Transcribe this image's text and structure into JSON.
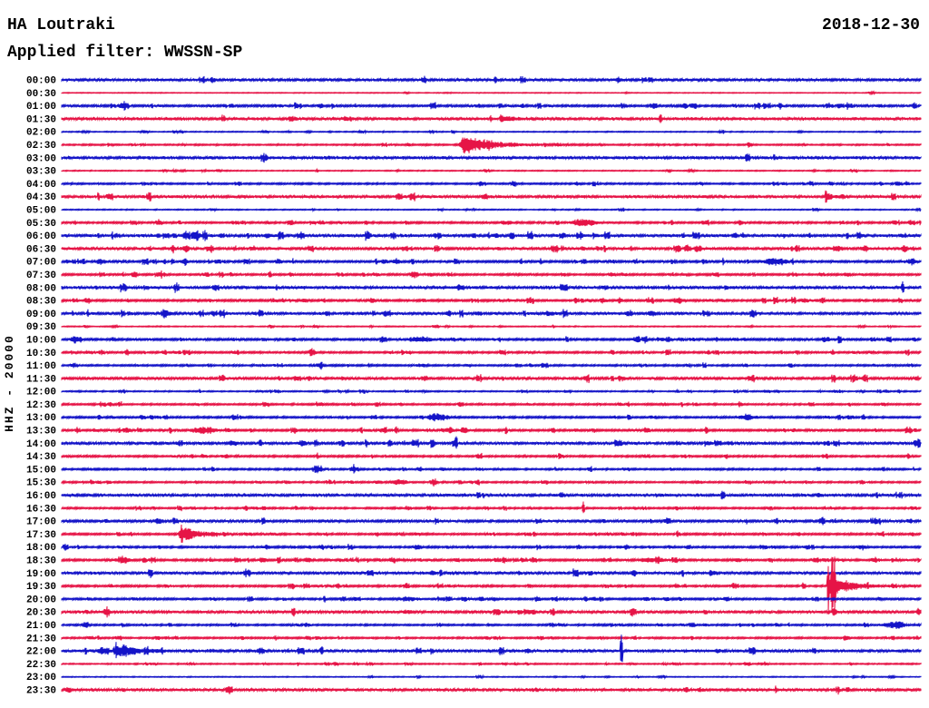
{
  "header": {
    "station": "HA Loutraki",
    "date": "2018-12-30",
    "filter_label": "Applied filter: WWSSN-SP"
  },
  "y_axis_label": "HHZ - 20000",
  "colors": {
    "trace_blue": "#1414c8",
    "trace_red": "#e61446",
    "text": "#000000",
    "background": "#ffffff"
  },
  "chart_data": {
    "type": "line",
    "description": "24-hour seismogram helicorder, 48 alternating blue/red traces of 30 minutes each",
    "title": "HA Loutraki",
    "date": "2018-12-30",
    "filter": "WWSSN-SP",
    "channel_scale_label": "HHZ - 20000",
    "minutes_per_row": 30,
    "row_count": 48,
    "event_key": "ev entries = [shape, x_px_on_plot, half_amplitude_px, width_px]; shapes: b=burst, d=diamond-blob, s=clipped-spike, e=sharp-onset-event-with-coda",
    "rows": [
      {
        "label": "00:00",
        "color": "blue",
        "amp": 1.3,
        "speckle": 0.15,
        "ev": [
          [
            "d",
            682,
            4,
            9
          ]
        ]
      },
      {
        "label": "00:30",
        "color": "red",
        "amp": 0.4,
        "speckle": 0.1,
        "ev": []
      },
      {
        "label": "01:00",
        "color": "blue",
        "amp": 1.0,
        "speckle": 0.85,
        "ev": [
          [
            "b",
            135,
            3,
            14
          ],
          [
            "d",
            860,
            3.5,
            8
          ]
        ]
      },
      {
        "label": "01:30",
        "color": "red",
        "amp": 1.5,
        "speckle": 0.15,
        "ev": [
          [
            "d",
            322,
            3.5,
            9
          ],
          [
            "e",
            552,
            6,
            30
          ]
        ]
      },
      {
        "label": "02:00",
        "color": "blue",
        "amp": 0.5,
        "speckle": 0.3,
        "ev": [
          [
            "b",
            160,
            1.5,
            14
          ]
        ]
      },
      {
        "label": "02:30",
        "color": "red",
        "amp": 0.7,
        "speckle": 0.5,
        "ev": [
          [
            "b",
            450,
            1.5,
            10
          ],
          [
            "e",
            512,
            12,
            140
          ]
        ]
      },
      {
        "label": "03:00",
        "color": "blue",
        "amp": 1.5,
        "speckle": 0.1,
        "ev": []
      },
      {
        "label": "03:30",
        "color": "red",
        "amp": 0.5,
        "speckle": 0.3,
        "ev": [
          [
            "d",
            737,
            2.5,
            8
          ]
        ]
      },
      {
        "label": "04:00",
        "color": "blue",
        "amp": 0.8,
        "speckle": 0.6,
        "ev": [
          [
            "b",
            637,
            2,
            12
          ]
        ]
      },
      {
        "label": "04:30",
        "color": "red",
        "amp": 1.4,
        "speckle": 0.2,
        "ev": [
          [
            "d",
            535,
            3.5,
            9
          ],
          [
            "e",
            910,
            5,
            25
          ]
        ]
      },
      {
        "label": "05:00",
        "color": "blue",
        "amp": 0.5,
        "speckle": 0.25,
        "ev": []
      },
      {
        "label": "05:30",
        "color": "red",
        "amp": 0.9,
        "speckle": 0.6,
        "ev": [
          [
            "b",
            175,
            3,
            12
          ],
          [
            "b",
            562,
            2.5,
            10
          ],
          [
            "b",
            645,
            5,
            40
          ],
          [
            "b",
            817,
            2.5,
            12
          ]
        ]
      },
      {
        "label": "06:00",
        "color": "blue",
        "amp": 1.4,
        "speckle": 0.6,
        "ev": [
          [
            "b",
            218,
            3,
            12
          ],
          [
            "b",
            295,
            2.5,
            9
          ],
          [
            "b",
            405,
            2.5,
            9
          ],
          [
            "d",
            547,
            3.5,
            8
          ],
          [
            "b",
            810,
            2.5,
            10
          ]
        ]
      },
      {
        "label": "06:30",
        "color": "red",
        "amp": 1.3,
        "speckle": 0.5,
        "ev": [
          [
            "b",
            205,
            3.5,
            12
          ],
          [
            "b",
            643,
            2.5,
            8
          ],
          [
            "b",
            757,
            2.5,
            8
          ],
          [
            "b",
            923,
            4,
            14
          ],
          [
            "b",
            953,
            3.5,
            10
          ],
          [
            "b",
            997,
            4.5,
            10
          ]
        ]
      },
      {
        "label": "07:00",
        "color": "blue",
        "amp": 1.0,
        "speckle": 0.85,
        "ev": [
          [
            "b",
            112,
            3.5,
            14
          ],
          [
            "b",
            203,
            3,
            12
          ],
          [
            "b",
            307,
            3,
            10
          ],
          [
            "b",
            437,
            3.5,
            12
          ],
          [
            "b",
            855,
            4,
            40
          ],
          [
            "b",
            1005,
            3.5,
            16
          ]
        ]
      },
      {
        "label": "07:30",
        "color": "red",
        "amp": 0.9,
        "speckle": 0.7,
        "ev": [
          [
            "b",
            180,
            2.5,
            10
          ],
          [
            "b",
            455,
            3,
            10
          ]
        ]
      },
      {
        "label": "08:00",
        "color": "blue",
        "amp": 1.4,
        "speckle": 0.35,
        "ev": [
          [
            "b",
            507,
            2.5,
            14
          ],
          [
            "b",
            668,
            2.5,
            10
          ],
          [
            "s",
            995,
            8,
            3
          ]
        ]
      },
      {
        "label": "08:30",
        "color": "red",
        "amp": 1.0,
        "speckle": 0.8,
        "ev": [
          [
            "b",
            335,
            2.5,
            10
          ],
          [
            "b",
            410,
            3,
            10
          ],
          [
            "b",
            683,
            3,
            10
          ],
          [
            "b",
            748,
            3.5,
            18
          ],
          [
            "b",
            887,
            3,
            10
          ]
        ]
      },
      {
        "label": "09:00",
        "color": "blue",
        "amp": 1.3,
        "speckle": 0.55,
        "ev": [
          [
            "b",
            185,
            3,
            12
          ],
          [
            "b",
            427,
            3.5,
            14
          ],
          [
            "b",
            605,
            3,
            12
          ],
          [
            "b",
            692,
            3,
            10
          ],
          [
            "b",
            718,
            3.5,
            10
          ]
        ]
      },
      {
        "label": "09:30",
        "color": "red",
        "amp": 0.5,
        "speckle": 0.3,
        "ev": [
          [
            "d",
            299,
            2.5,
            7
          ]
        ]
      },
      {
        "label": "10:00",
        "color": "blue",
        "amp": 1.0,
        "speckle": 0.8,
        "ev": [
          [
            "b",
            82,
            4,
            12
          ],
          [
            "b",
            463,
            3.5,
            30
          ],
          [
            "b",
            737,
            2.5,
            12
          ]
        ]
      },
      {
        "label": "10:30",
        "color": "red",
        "amp": 0.9,
        "speckle": 0.65,
        "ev": [
          [
            "d",
            343,
            3.5,
            8
          ],
          [
            "b",
            832,
            2,
            10
          ]
        ]
      },
      {
        "label": "11:00",
        "color": "blue",
        "amp": 0.8,
        "speckle": 0.5,
        "ev": [
          [
            "b",
            352,
            2.5,
            22
          ],
          [
            "b",
            465,
            2,
            20
          ]
        ]
      },
      {
        "label": "11:30",
        "color": "red",
        "amp": 1.2,
        "speckle": 0.4,
        "ev": [
          [
            "b",
            687,
            2,
            8
          ]
        ]
      },
      {
        "label": "12:00",
        "color": "blue",
        "amp": 0.6,
        "speckle": 0.6,
        "ev": [
          [
            "b",
            977,
            2,
            10
          ]
        ]
      },
      {
        "label": "12:30",
        "color": "red",
        "amp": 0.8,
        "speckle": 0.55,
        "ev": [
          [
            "b",
            442,
            2,
            8
          ]
        ]
      },
      {
        "label": "13:00",
        "color": "blue",
        "amp": 0.9,
        "speckle": 0.65,
        "ev": [
          [
            "b",
            482,
            5,
            34
          ],
          [
            "b",
            822,
            3.5,
            26
          ]
        ]
      },
      {
        "label": "13:30",
        "color": "red",
        "amp": 1.0,
        "speckle": 0.7,
        "ev": [
          [
            "b",
            140,
            3,
            12
          ],
          [
            "b",
            225,
            4,
            40
          ],
          [
            "b",
            497,
            3,
            10
          ],
          [
            "d",
            512,
            5,
            10
          ]
        ]
      },
      {
        "label": "14:00",
        "color": "blue",
        "amp": 1.3,
        "speckle": 0.4,
        "ev": [
          [
            "b",
            257,
            3,
            12
          ],
          [
            "b",
            333,
            3.5,
            12
          ],
          [
            "b",
            377,
            3,
            10
          ],
          [
            "s",
            503,
            11,
            3
          ]
        ]
      },
      {
        "label": "14:30",
        "color": "red",
        "amp": 0.9,
        "speckle": 0.55,
        "ev": []
      },
      {
        "label": "15:00",
        "color": "blue",
        "amp": 0.8,
        "speckle": 0.6,
        "ev": [
          [
            "b",
            350,
            3,
            16
          ],
          [
            "b",
            390,
            2.5,
            10
          ],
          [
            "b",
            463,
            2.5,
            10
          ]
        ]
      },
      {
        "label": "15:30",
        "color": "red",
        "amp": 0.8,
        "speckle": 0.6,
        "ev": [
          [
            "b",
            440,
            3,
            26
          ],
          [
            "b",
            480,
            2.5,
            10
          ],
          [
            "b",
            507,
            2.5,
            8
          ],
          [
            "b",
            770,
            2,
            10
          ]
        ]
      },
      {
        "label": "16:00",
        "color": "blue",
        "amp": 1.4,
        "speckle": 0.15,
        "ev": [
          [
            "b",
            902,
            1.5,
            8
          ]
        ]
      },
      {
        "label": "16:30",
        "color": "red",
        "amp": 0.8,
        "speckle": 0.55,
        "ev": [
          [
            "s",
            643,
            13,
            3
          ]
        ]
      },
      {
        "label": "17:00",
        "color": "blue",
        "amp": 1.2,
        "speckle": 0.5,
        "ev": [
          [
            "b",
            175,
            3.5,
            14
          ]
        ]
      },
      {
        "label": "17:30",
        "color": "red",
        "amp": 0.9,
        "speckle": 0.6,
        "ev": [
          [
            "e",
            200,
            13,
            70
          ],
          [
            "b",
            880,
            2.5,
            10
          ],
          [
            "b",
            1005,
            2.5,
            10
          ]
        ]
      },
      {
        "label": "18:00",
        "color": "blue",
        "amp": 0.9,
        "speckle": 0.65,
        "ev": [
          [
            "b",
            295,
            2.5,
            10
          ],
          [
            "b",
            460,
            3,
            14
          ],
          [
            "b",
            690,
            2.5,
            10
          ],
          [
            "b",
            890,
            2.5,
            12
          ],
          [
            "b",
            950,
            3,
            14
          ]
        ]
      },
      {
        "label": "18:30",
        "color": "red",
        "amp": 1.0,
        "speckle": 0.8,
        "ev": [
          [
            "b",
            135,
            3.5,
            24
          ],
          [
            "b",
            290,
            3,
            12
          ],
          [
            "b",
            340,
            2.5,
            10
          ],
          [
            "b",
            720,
            3,
            40
          ],
          [
            "b",
            813,
            2.5,
            10
          ],
          [
            "b",
            900,
            3,
            14
          ],
          [
            "b",
            965,
            3,
            12
          ]
        ]
      },
      {
        "label": "19:00",
        "color": "blue",
        "amp": 1.3,
        "speckle": 0.3,
        "ev": [
          [
            "b",
            477,
            2,
            10
          ],
          [
            "b",
            785,
            2.5,
            14
          ]
        ]
      },
      {
        "label": "19:30",
        "color": "red",
        "amp": 0.9,
        "speckle": 0.6,
        "ev": [
          [
            "b",
            808,
            2,
            8
          ],
          [
            "s",
            913,
            46,
            2
          ],
          [
            "s",
            917,
            58,
            2
          ],
          [
            "s",
            920,
            36,
            2
          ],
          [
            "e",
            916,
            14,
            95
          ]
        ]
      },
      {
        "label": "20:00",
        "color": "blue",
        "amp": 0.9,
        "speckle": 0.8,
        "ev": [
          [
            "s",
            358,
            5,
            3
          ],
          [
            "b",
            450,
            2.5,
            30
          ],
          [
            "b",
            545,
            2.5,
            10
          ],
          [
            "b",
            655,
            2.5,
            12
          ],
          [
            "b",
            800,
            2.5,
            14
          ]
        ]
      },
      {
        "label": "20:30",
        "color": "red",
        "amp": 1.3,
        "speckle": 0.35,
        "ev": [
          [
            "b",
            118,
            2.5,
            12
          ],
          [
            "b",
            450,
            2.5,
            16
          ],
          [
            "d",
            588,
            3,
            8
          ],
          [
            "d",
            777,
            2.5,
            7
          ],
          [
            "d",
            1013,
            4,
            8
          ]
        ]
      },
      {
        "label": "21:00",
        "color": "blue",
        "amp": 0.8,
        "speckle": 0.5,
        "ev": [
          [
            "b",
            95,
            4,
            12
          ],
          [
            "b",
            985,
            4,
            36
          ]
        ]
      },
      {
        "label": "21:30",
        "color": "red",
        "amp": 0.8,
        "speckle": 0.6,
        "ev": [
          [
            "b",
            100,
            2,
            10
          ],
          [
            "b",
            537,
            2,
            8
          ],
          [
            "b",
            933,
            2.5,
            10
          ]
        ]
      },
      {
        "label": "22:00",
        "color": "blue",
        "amp": 1.4,
        "speckle": 0.4,
        "ev": [
          [
            "b",
            115,
            5,
            18
          ],
          [
            "e",
            128,
            9,
            90
          ],
          [
            "s",
            685,
            26,
            3
          ]
        ]
      },
      {
        "label": "22:30",
        "color": "red",
        "amp": 0.6,
        "speckle": 0.4,
        "ev": [
          [
            "d",
            370,
            3,
            8
          ],
          [
            "b",
            745,
            2.5,
            10
          ],
          [
            "b",
            840,
            1.5,
            14
          ]
        ]
      },
      {
        "label": "23:00",
        "color": "blue",
        "amp": 0.45,
        "speckle": 0.2,
        "ev": []
      },
      {
        "label": "23:30",
        "color": "red",
        "amp": 1.4,
        "speckle": 0.15,
        "ev": [
          [
            "d",
            76,
            3.5,
            9
          ]
        ]
      }
    ]
  }
}
